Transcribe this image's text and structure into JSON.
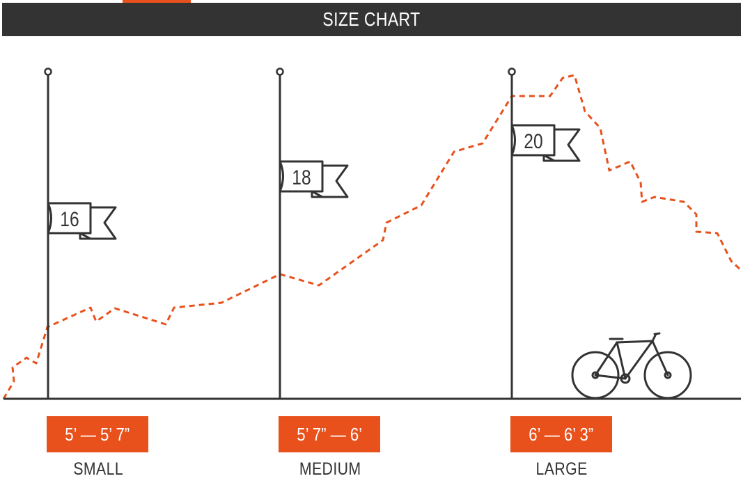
{
  "header": {
    "title": "SIZE CHART"
  },
  "colors": {
    "accent": "#e8511c",
    "dark": "#333333"
  },
  "sizes": [
    {
      "frame": "16",
      "height_range": "5’ — 5’ 7”",
      "label": "SMALL"
    },
    {
      "frame": "18",
      "height_range": "5’ 7” — 6’",
      "label": "MEDIUM"
    },
    {
      "frame": "20",
      "height_range": "6’ — 6’ 3”",
      "label": "LARGE"
    }
  ],
  "icons": [
    "flagpole-icon",
    "flag-icon",
    "bicycle-icon",
    "mountain-profile-line"
  ]
}
